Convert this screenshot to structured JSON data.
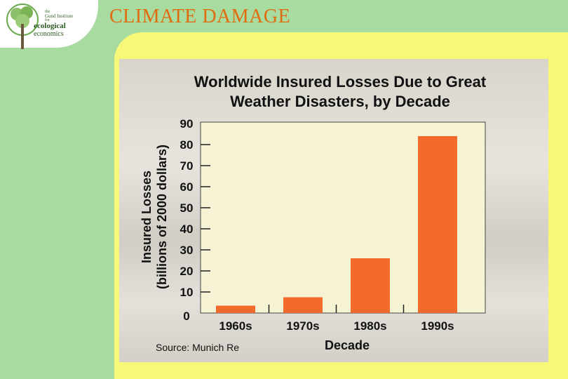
{
  "logo": {
    "line_the": "the",
    "line1": "Gund Institute",
    "line_for": "for",
    "line2": "ecological",
    "line3": "economics",
    "icon": "tree-logo-icon"
  },
  "slide": {
    "title": "CLIMATE DAMAGE"
  },
  "colors": {
    "background": "#a8dba0",
    "panel": "#f8f878",
    "title": "#e06c10",
    "bar": "#f26a2c",
    "plot": "#f5f3d3"
  },
  "chart_data": {
    "type": "bar",
    "title_line1": "Worldwide Insured Losses Due to Great",
    "title_line2": "Weather Disasters, by Decade",
    "ylabel_line1": "Insured Losses",
    "ylabel_line2": "(billions of 2000 dollars)",
    "xlabel": "Decade",
    "categories": [
      "1960s",
      "1970s",
      "1980s",
      "1990s"
    ],
    "values": [
      3.5,
      7.5,
      26,
      84
    ],
    "ylim": [
      0,
      90
    ],
    "yticks": [
      0,
      10,
      20,
      30,
      40,
      50,
      60,
      70,
      80,
      90
    ],
    "source": "Source: Munich Re",
    "grid": false
  }
}
